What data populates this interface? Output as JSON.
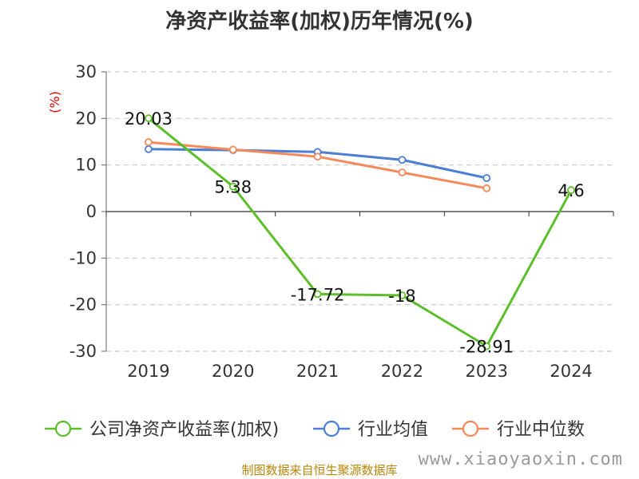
{
  "chart_data": {
    "type": "line",
    "title": "净资产收益率(加权)历年情况(%)",
    "ylabel": "(%)",
    "xlabel": "",
    "categories": [
      "2019",
      "2020",
      "2021",
      "2022",
      "2023",
      "2024"
    ],
    "yticks": [
      "30",
      "20",
      "10",
      "0",
      "-10",
      "-20",
      "-30"
    ],
    "ylim": [
      -30,
      30
    ],
    "grid": true,
    "legend_position": "bottom",
    "series": [
      {
        "name": "公司净资产收益率(加权)",
        "color": "#5cbf2a",
        "values": [
          20.03,
          5.38,
          -17.72,
          -18,
          -28.91,
          4.6
        ],
        "labels": [
          "20.03",
          "5.38",
          "-17.72",
          "-18",
          "-28.91",
          "4.6"
        ]
      },
      {
        "name": "行业均值",
        "color": "#4a7fd4",
        "values": [
          13.4,
          13.2,
          12.8,
          11.1,
          7.2,
          null
        ]
      },
      {
        "name": "行业中位数",
        "color": "#f5895a",
        "values": [
          14.9,
          13.3,
          11.8,
          8.4,
          5.0,
          null
        ]
      }
    ]
  },
  "footer": {
    "source": "制图数据来自恒生聚源数据库",
    "watermark": "www.xiaoyaoxin.com"
  }
}
